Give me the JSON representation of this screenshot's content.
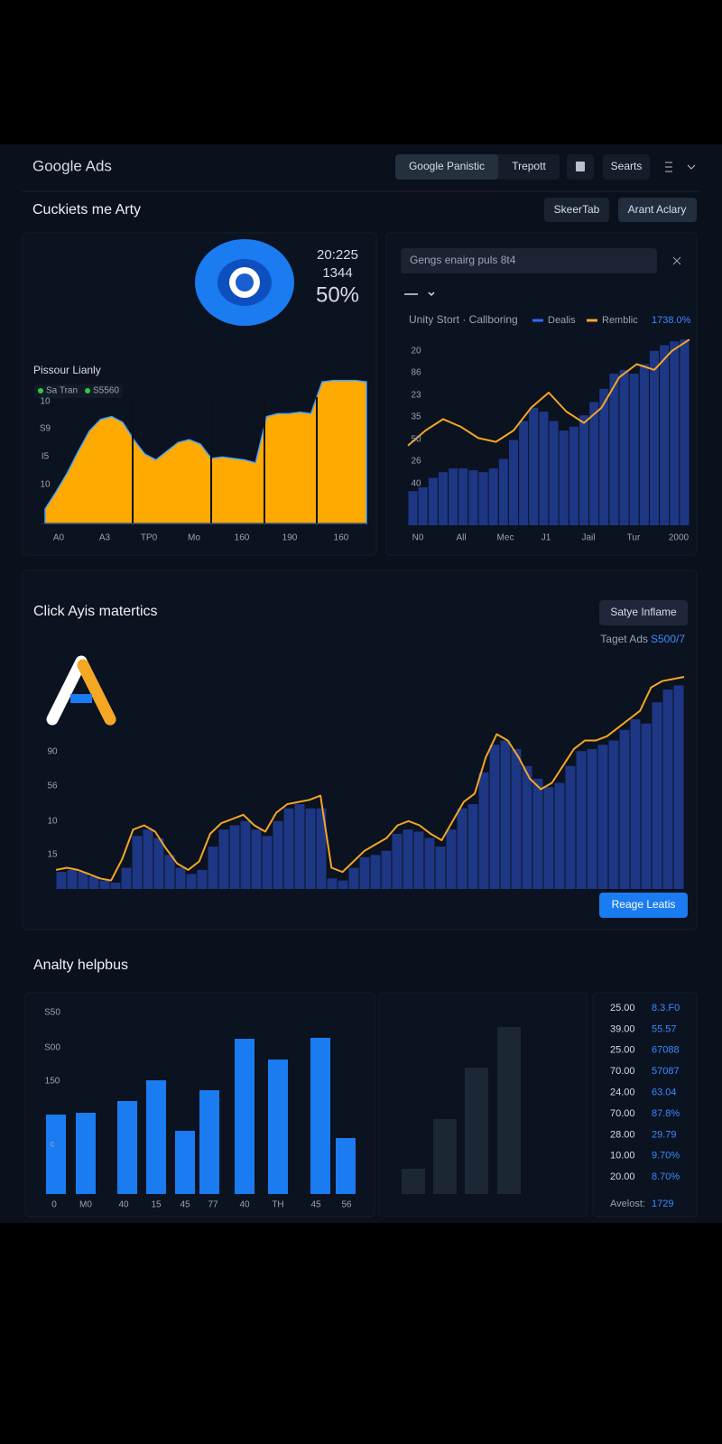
{
  "header": {
    "logo": "Google Ads",
    "tabs": [
      "Google Panistic",
      "Trepott",
      "Searts"
    ]
  },
  "overview": {
    "title": "Cuckiets me Arty",
    "buttons": [
      "SkeerTab",
      "Arant Aclary"
    ],
    "stats": [
      "20:225",
      "1344",
      "50%"
    ],
    "area_chart": {
      "type": "area",
      "title": "Pissour Lianly",
      "legend": [
        "Sa Tran",
        "S5560"
      ],
      "color": "#ffaa00",
      "ylim": [
        0,
        100
      ],
      "y_labels": [
        "10",
        "S9",
        "I5",
        "10"
      ],
      "categories": [
        "A0",
        "A3",
        "TP0",
        "Mo",
        "160",
        "190",
        "160"
      ],
      "values": [
        10,
        22,
        35,
        50,
        64,
        72,
        74,
        70,
        58,
        48,
        44,
        50,
        56,
        58,
        55,
        45,
        46,
        45,
        44,
        42,
        74,
        76,
        76,
        77,
        76,
        98,
        99,
        99,
        99,
        98
      ]
    },
    "trend_chart": {
      "type": "bar_line",
      "search": "Gengs enairg puls 8t4",
      "legend_label": "Unity Stort · Callboring",
      "note": "1738.0%",
      "ylim": [
        0,
        100
      ],
      "y_labels": [
        "20",
        "86",
        "23",
        "35",
        "50",
        "26",
        "40"
      ],
      "categories": [
        "N0",
        "All",
        "Mec",
        "J1",
        "Jail",
        "Tur",
        "2000"
      ],
      "series": [
        {
          "name": "Dealis",
          "color": "#1f3c8f",
          "values": [
            18,
            20,
            25,
            28,
            30,
            30,
            29,
            28,
            30,
            35,
            45,
            55,
            62,
            60,
            55,
            50,
            52,
            58,
            65,
            72,
            80,
            82,
            80,
            85,
            92,
            95,
            97,
            98
          ]
        },
        {
          "name": "Remblic",
          "color": "#f5a623",
          "values": [
            42,
            50,
            56,
            52,
            46,
            44,
            50,
            62,
            70,
            60,
            54,
            62,
            78,
            85,
            82,
            92,
            98
          ]
        }
      ]
    }
  },
  "metrics": {
    "title": "Click Ayis matertics",
    "button": "Satye Inflame",
    "target_label": "Taget Ads",
    "target_value": "S500/7",
    "action": "Reage Leatis",
    "chart": {
      "type": "bar_line",
      "ylim": [
        0,
        100
      ],
      "y_labels": [
        "90",
        "56",
        "10",
        "15"
      ],
      "series": [
        {
          "color": "#1f3c8f",
          "values": [
            8,
            9,
            8,
            6,
            4,
            3,
            10,
            25,
            28,
            24,
            16,
            10,
            7,
            9,
            20,
            28,
            30,
            32,
            28,
            25,
            32,
            38,
            40,
            38,
            38,
            5,
            4,
            10,
            15,
            16,
            18,
            26,
            28,
            27,
            24,
            20,
            28,
            38,
            40,
            55,
            68,
            70,
            66,
            58,
            52,
            48,
            50,
            58,
            65,
            66,
            68,
            70,
            75,
            80,
            78,
            88,
            94,
            96
          ]
        },
        {
          "color": "#f5a623",
          "values": [
            9,
            10,
            9,
            7,
            5,
            4,
            14,
            28,
            30,
            27,
            19,
            12,
            9,
            13,
            26,
            31,
            33,
            35,
            30,
            27,
            36,
            40,
            41,
            42,
            44,
            10,
            8,
            13,
            18,
            21,
            24,
            30,
            32,
            30,
            26,
            23,
            32,
            41,
            45,
            62,
            73,
            70,
            62,
            52,
            47,
            50,
            58,
            66,
            70,
            70,
            72,
            76,
            80,
            84,
            95,
            98,
            99,
            100
          ]
        }
      ]
    }
  },
  "analytics": {
    "title": "Analty helpbus",
    "chart": {
      "type": "bar",
      "color": "#1a7cf0",
      "ylim": [
        0,
        200
      ],
      "y_labels": [
        "S50",
        "S00",
        "150",
        "c"
      ],
      "categories": [
        "0",
        "M0",
        "40",
        "15",
        "45",
        "77",
        "40",
        "TH",
        "45",
        "56"
      ],
      "values": [
        88,
        90,
        103,
        126,
        70,
        115,
        172,
        149,
        173,
        62
      ]
    },
    "secondary_chart": {
      "type": "bar",
      "color": "#1c2736",
      "ylim": [
        0,
        200
      ],
      "values": [
        28,
        83,
        140,
        185
      ]
    },
    "table": {
      "rows": [
        [
          "25.00",
          "8.3.F0"
        ],
        [
          "39.00",
          "55.57"
        ],
        [
          "25.00",
          "67088"
        ],
        [
          "70.00",
          "57087"
        ],
        [
          "24.00",
          "63.04"
        ],
        [
          "70.00",
          "87.8%"
        ],
        [
          "28.00",
          "29.79"
        ],
        [
          "10.00",
          "9.70%"
        ],
        [
          "20.00",
          "8.70%"
        ]
      ],
      "footer_label": "Avelost:",
      "footer_value": "1729"
    }
  }
}
